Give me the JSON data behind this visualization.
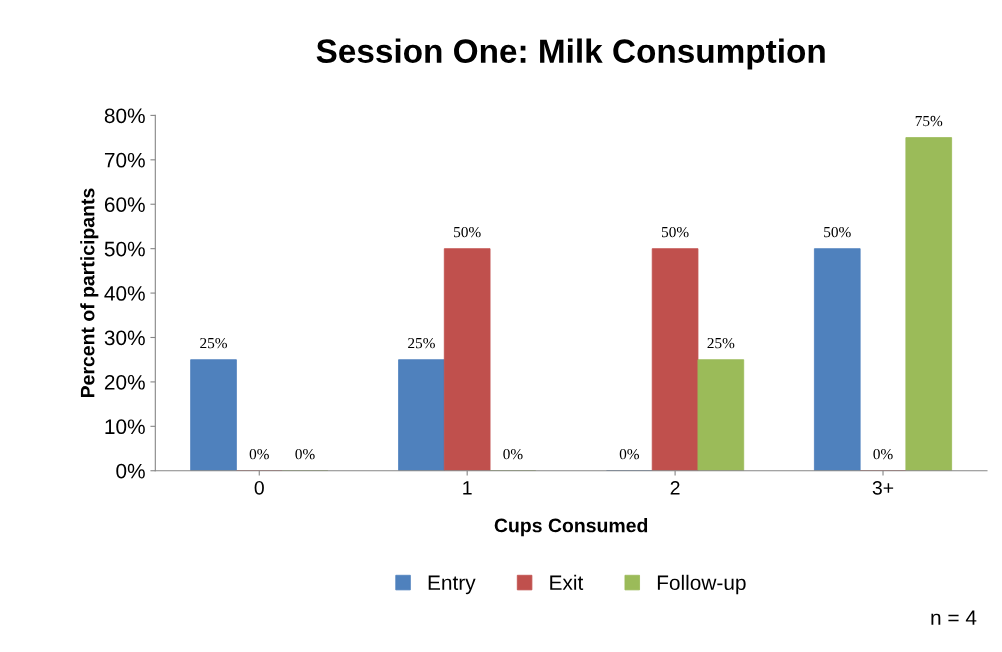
{
  "chart_data": {
    "type": "bar",
    "title": "Session One: Milk Consumption",
    "xlabel": "Cups Consumed",
    "ylabel": "Percent of participants",
    "categories": [
      "0",
      "1",
      "2",
      "3+"
    ],
    "series": [
      {
        "name": "Entry",
        "color": "#4f81bd",
        "values": [
          25,
          25,
          0,
          50
        ],
        "value_labels": [
          "25%",
          "25%",
          "0%",
          "50%"
        ]
      },
      {
        "name": "Exit",
        "color": "#c0504d",
        "values": [
          0,
          50,
          50,
          0
        ],
        "value_labels": [
          "0%",
          "50%",
          "50%",
          "0%"
        ]
      },
      {
        "name": "Follow-up",
        "color": "#9bbb59",
        "values": [
          0,
          0,
          25,
          75
        ],
        "value_labels": [
          "0%",
          "0%",
          "25%",
          "75%"
        ]
      }
    ],
    "ylim": [
      0,
      80
    ],
    "yticks": [
      {
        "value": 0,
        "label": "0%"
      },
      {
        "value": 10,
        "label": "10%"
      },
      {
        "value": 20,
        "label": "20%"
      },
      {
        "value": 30,
        "label": "30%"
      },
      {
        "value": 40,
        "label": "40%"
      },
      {
        "value": 50,
        "label": "50%"
      },
      {
        "value": 60,
        "label": "60%"
      },
      {
        "value": 70,
        "label": "70%"
      },
      {
        "value": 80,
        "label": "80%"
      }
    ],
    "grid": false,
    "legend": "bottom",
    "annotations": [
      "n = 4"
    ]
  }
}
